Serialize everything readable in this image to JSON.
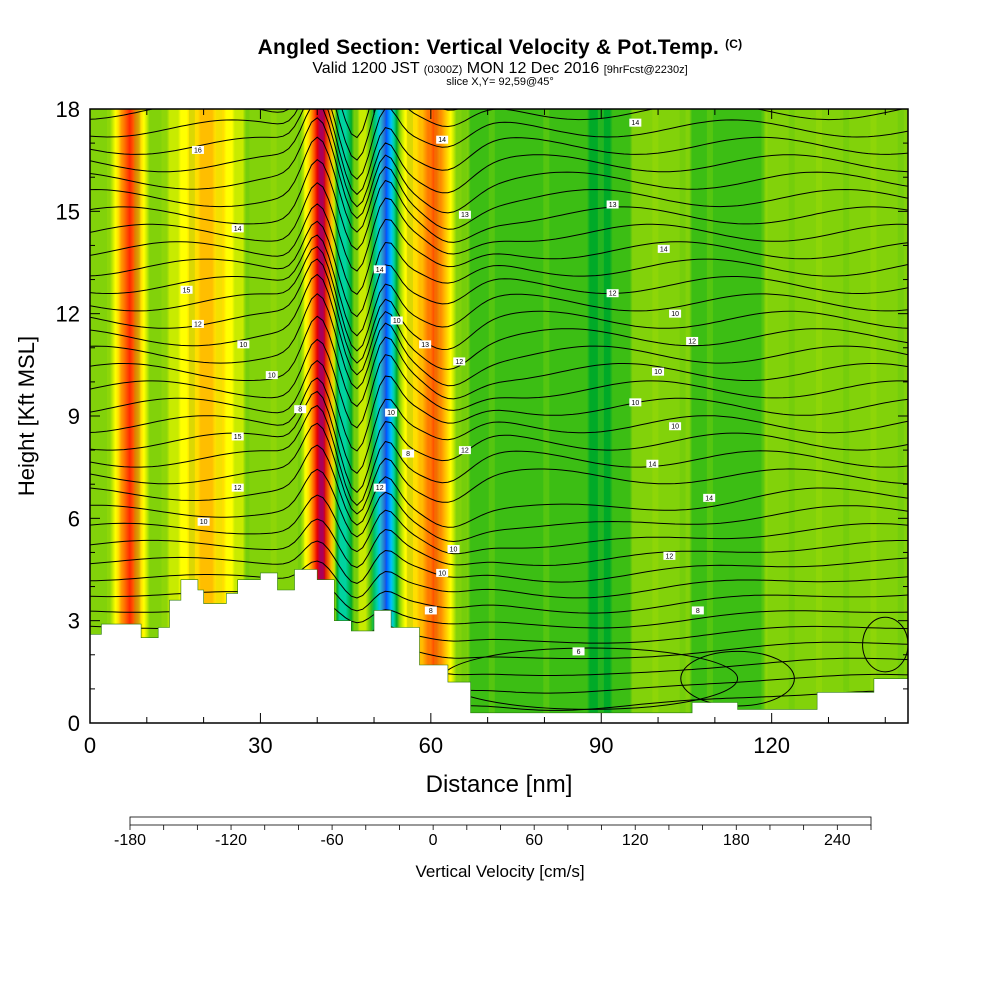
{
  "header": {
    "title": "Angled Section: Vertical Velocity & Pot.Temp.",
    "copyright": "(C)",
    "valid_prefix": "Valid 1200 JST",
    "valid_utc": "(0300Z)",
    "valid_date": "MON 12 Dec 2016",
    "forecast": "[9hrFcst@2230z]",
    "slice": "slice X,Y= 92,59@45°"
  },
  "chart_data": {
    "type": "heatmap",
    "title": "Angled Section: Vertical Velocity & Pot.Temp.",
    "xlabel": "Distance [nm]",
    "ylabel": "Height [Kft MSL]",
    "xlim": [
      0,
      144
    ],
    "ylim": [
      0,
      18
    ],
    "x_ticks": [
      0,
      30,
      60,
      90,
      120
    ],
    "y_ticks": [
      0,
      3,
      6,
      9,
      12,
      15,
      18
    ],
    "grid": false,
    "velocity_columns": [
      {
        "x": 7,
        "w": 160
      },
      {
        "x": 17,
        "w": 25
      },
      {
        "x": 21,
        "w": 70
      },
      {
        "x": 27,
        "w": 10
      },
      {
        "x": 41,
        "w": 240
      },
      {
        "x": 44,
        "w": -120
      },
      {
        "x": 48,
        "w": 40
      },
      {
        "x": 52,
        "w": -180
      },
      {
        "x": 57,
        "w": 70
      },
      {
        "x": 61,
        "w": 110
      },
      {
        "x": 75,
        "w": -15
      },
      {
        "x": 90,
        "w": -25
      },
      {
        "x": 100,
        "w": 20
      },
      {
        "x": 112,
        "w": -20
      },
      {
        "x": 125,
        "w": 15
      }
    ],
    "terrain_kft": [
      [
        0,
        2.6
      ],
      [
        2,
        2.9
      ],
      [
        9,
        2.5
      ],
      [
        12,
        2.8
      ],
      [
        14,
        3.6
      ],
      [
        16,
        4.2
      ],
      [
        19,
        3.9
      ],
      [
        20,
        3.5
      ],
      [
        24,
        3.8
      ],
      [
        26,
        4.2
      ],
      [
        30,
        4.4
      ],
      [
        33,
        3.9
      ],
      [
        36,
        4.5
      ],
      [
        40,
        4.2
      ],
      [
        43,
        3.0
      ],
      [
        46,
        2.7
      ],
      [
        50,
        3.3
      ],
      [
        53,
        2.8
      ],
      [
        58,
        1.7
      ],
      [
        63,
        1.2
      ],
      [
        67,
        0.3
      ],
      [
        75,
        0.3
      ],
      [
        90,
        0.3
      ],
      [
        100,
        0.3
      ],
      [
        106,
        0.6
      ],
      [
        114,
        0.4
      ],
      [
        128,
        0.9
      ],
      [
        138,
        1.3
      ],
      [
        144,
        1.3
      ]
    ],
    "contour_labels": [
      {
        "x": 19,
        "y": 16.8,
        "text": "16"
      },
      {
        "x": 62,
        "y": 17.1,
        "text": "14"
      },
      {
        "x": 96,
        "y": 17.6,
        "text": "14"
      },
      {
        "x": 26,
        "y": 14.5,
        "text": "14"
      },
      {
        "x": 66,
        "y": 14.9,
        "text": "13"
      },
      {
        "x": 92,
        "y": 15.2,
        "text": "13"
      },
      {
        "x": 101,
        "y": 13.9,
        "text": "14"
      },
      {
        "x": 17,
        "y": 12.7,
        "text": "15"
      },
      {
        "x": 51,
        "y": 13.3,
        "text": "14"
      },
      {
        "x": 92,
        "y": 12.6,
        "text": "12"
      },
      {
        "x": 19,
        "y": 11.7,
        "text": "12"
      },
      {
        "x": 54,
        "y": 11.8,
        "text": "10"
      },
      {
        "x": 103,
        "y": 12.0,
        "text": "10"
      },
      {
        "x": 27,
        "y": 11.1,
        "text": "10"
      },
      {
        "x": 59,
        "y": 11.1,
        "text": "13"
      },
      {
        "x": 106,
        "y": 11.2,
        "text": "12"
      },
      {
        "x": 32,
        "y": 10.2,
        "text": "10"
      },
      {
        "x": 65,
        "y": 10.6,
        "text": "12"
      },
      {
        "x": 100,
        "y": 10.3,
        "text": "10"
      },
      {
        "x": 37,
        "y": 9.2,
        "text": "8"
      },
      {
        "x": 53,
        "y": 9.1,
        "text": "10"
      },
      {
        "x": 96,
        "y": 9.4,
        "text": "10"
      },
      {
        "x": 26,
        "y": 8.4,
        "text": "15"
      },
      {
        "x": 103,
        "y": 8.7,
        "text": "10"
      },
      {
        "x": 56,
        "y": 7.9,
        "text": "8"
      },
      {
        "x": 66,
        "y": 8.0,
        "text": "12"
      },
      {
        "x": 99,
        "y": 7.6,
        "text": "14"
      },
      {
        "x": 26,
        "y": 6.9,
        "text": "12"
      },
      {
        "x": 51,
        "y": 6.9,
        "text": "12"
      },
      {
        "x": 109,
        "y": 6.6,
        "text": "14"
      },
      {
        "x": 20,
        "y": 5.9,
        "text": "10"
      },
      {
        "x": 64,
        "y": 5.1,
        "text": "10"
      },
      {
        "x": 102,
        "y": 4.9,
        "text": "12"
      },
      {
        "x": 62,
        "y": 4.4,
        "text": "10"
      },
      {
        "x": 60,
        "y": 3.3,
        "text": "8"
      },
      {
        "x": 107,
        "y": 3.3,
        "text": "8"
      },
      {
        "x": 86,
        "y": 2.1,
        "text": "6"
      }
    ]
  },
  "colorbar": {
    "label": "Vertical Velocity [cm/s]",
    "min": -180,
    "max": 260,
    "colors": [
      "#0000ff",
      "#0040ff",
      "#0080ff",
      "#00bfff",
      "#00e6e6",
      "#00d2a0",
      "#00be64",
      "#00aa28",
      "#3cbe14",
      "#82d20a",
      "#c8eb00",
      "#ffff00",
      "#ffde00",
      "#ffbe00",
      "#ff9a00",
      "#ff7800",
      "#ff5000",
      "#ff2800",
      "#e60000",
      "#c8002a",
      "#aa005a",
      "#8c0078"
    ],
    "tick_labels": [
      "-180",
      "-120",
      "-60",
      "0",
      "60",
      "120",
      "180",
      "240"
    ]
  }
}
